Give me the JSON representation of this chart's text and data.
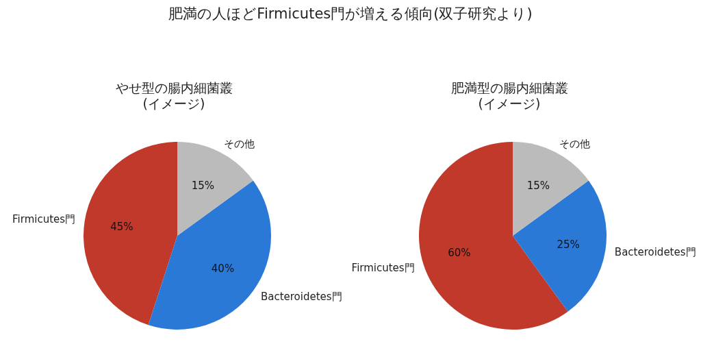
{
  "chart_data": [
    {
      "type": "pie",
      "title": "やせ型の腸内細菌叢\n(イメージ)",
      "annotations": [
        "肥満の人ほどFirmicutes門が増える傾向(双子研究より)"
      ],
      "categories": [
        "Firmicutes門",
        "Bacteroidetes門",
        "その他"
      ],
      "values": [
        45,
        40,
        15
      ],
      "colors": [
        "#c0392b",
        "#2b79d7",
        "#bbbbbb"
      ],
      "value_labels": [
        "45%",
        "40%",
        "15%"
      ]
    },
    {
      "type": "pie",
      "title": "肥満型の腸内細菌叢\n(イメージ)",
      "categories": [
        "Firmicutes門",
        "Bacteroidetes門",
        "その他"
      ],
      "values": [
        60,
        25,
        15
      ],
      "colors": [
        "#c0392b",
        "#2b79d7",
        "#bbbbbb"
      ],
      "value_labels": [
        "60%",
        "25%",
        "15%"
      ]
    }
  ]
}
